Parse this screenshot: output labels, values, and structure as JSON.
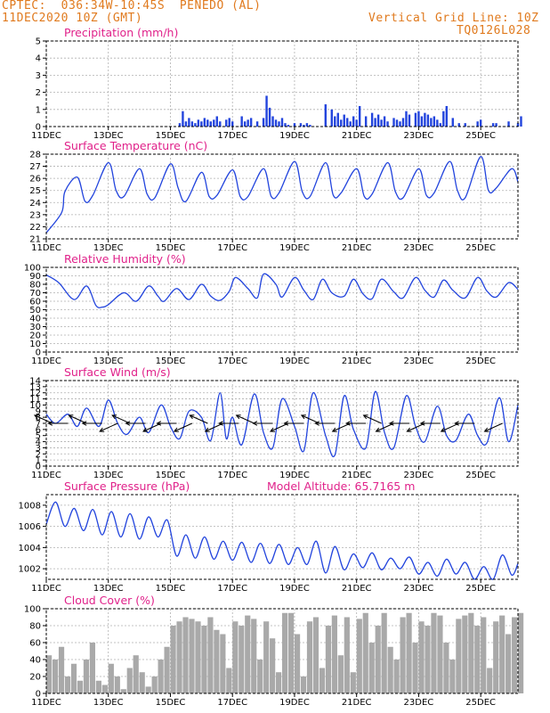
{
  "header": {
    "source": "CPTEC:",
    "coords": "036:34W-10:45S",
    "station": "PENEDO (AL)",
    "datetime": "11DEC2020 10Z (GMT)",
    "grid_note": "Vertical Grid Line: 10Z",
    "code": "TQ0126L028"
  },
  "colors": {
    "header": "#e07a1e",
    "title": "#e0218a",
    "line": "#2244dd",
    "cloud": "#a9a9a9"
  },
  "x_ticks": [
    "11DEC",
    "13DEC",
    "15DEC",
    "17DEC",
    "19DEC",
    "21DEC",
    "23DEC",
    "25DEC"
  ],
  "chart_data": [
    {
      "type": "bar",
      "title": "Precipitation (mm/h)",
      "ylim": [
        0,
        5
      ],
      "yticks": [
        "0",
        "1",
        "2",
        "3",
        "4",
        "5"
      ],
      "grid": true,
      "x_unit": "days since 11DEC2020 10Z",
      "series": [
        {
          "name": "Precipitation",
          "x": [
            4.3,
            4.4,
            4.5,
            4.6,
            4.7,
            4.8,
            4.9,
            5.0,
            5.1,
            5.2,
            5.3,
            5.4,
            5.5,
            5.6,
            5.8,
            5.9,
            6.0,
            6.3,
            6.4,
            6.5,
            6.6,
            6.8,
            7.0,
            7.1,
            7.2,
            7.3,
            7.4,
            7.5,
            7.6,
            7.7,
            7.8,
            8.0,
            8.2,
            8.3,
            8.4,
            8.5,
            9.0,
            9.2,
            9.3,
            9.4,
            9.5,
            9.6,
            9.7,
            9.8,
            9.9,
            10.0,
            10.1,
            10.3,
            10.5,
            10.6,
            10.7,
            10.8,
            10.9,
            11.0,
            11.2,
            11.3,
            11.4,
            11.5,
            11.6,
            11.7,
            11.9,
            12.0,
            12.1,
            12.2,
            12.3,
            12.4,
            12.5,
            12.6,
            12.7,
            12.8,
            12.9,
            13.1,
            13.3,
            13.5,
            13.9,
            14.0,
            14.4,
            14.5,
            14.9,
            15.2,
            15.3
          ],
          "values": [
            0.2,
            0.9,
            0.3,
            0.5,
            0.3,
            0.2,
            0.4,
            0.3,
            0.5,
            0.4,
            0.3,
            0.4,
            0.6,
            0.3,
            0.4,
            0.5,
            0.3,
            0.6,
            0.3,
            0.4,
            0.5,
            0.3,
            0.5,
            1.8,
            1.1,
            0.6,
            0.4,
            0.3,
            0.5,
            0.2,
            0.1,
            0.2,
            0.2,
            0.1,
            0.2,
            0.1,
            1.3,
            1.0,
            0.6,
            0.8,
            0.4,
            0.7,
            0.5,
            0.3,
            0.6,
            0.4,
            1.2,
            0.6,
            0.8,
            0.5,
            0.7,
            0.4,
            0.6,
            0.3,
            0.5,
            0.4,
            0.3,
            0.5,
            0.9,
            0.7,
            0.8,
            0.9,
            0.6,
            0.8,
            0.7,
            0.5,
            0.6,
            0.4,
            0.2,
            0.9,
            1.2,
            0.5,
            0.2,
            0.2,
            0.3,
            0.4,
            0.2,
            0.2,
            0.3,
            0.2,
            0.6
          ]
        }
      ]
    },
    {
      "type": "line",
      "title": "Surface Temperature (nC)",
      "ylim": [
        21,
        28
      ],
      "yticks": [
        "21",
        "22",
        "23",
        "24",
        "25",
        "26",
        "27",
        "28"
      ],
      "grid": true,
      "x_unit": "days since 11DEC2020 10Z",
      "series": [
        {
          "name": "Temperature",
          "x": [
            0,
            0.5,
            0.6,
            1.0,
            1.25,
            1.5,
            2.0,
            2.25,
            2.5,
            3.0,
            3.25,
            3.5,
            4.0,
            4.25,
            4.5,
            5.0,
            5.25,
            5.5,
            6.0,
            6.25,
            6.5,
            7.0,
            7.25,
            7.5,
            8.0,
            8.25,
            8.5,
            9.0,
            9.25,
            9.5,
            10.0,
            10.25,
            10.5,
            11.0,
            11.25,
            11.5,
            12.0,
            12.25,
            12.5,
            13.0,
            13.25,
            13.5,
            14.0,
            14.25,
            14.5,
            15.0,
            15.2
          ],
          "values": [
            21.5,
            23.2,
            24.9,
            26.1,
            24.1,
            24.6,
            27.3,
            25.0,
            24.5,
            26.8,
            24.7,
            24.4,
            27.2,
            25.2,
            24.1,
            26.5,
            24.5,
            24.6,
            26.7,
            24.5,
            24.5,
            26.8,
            24.5,
            24.8,
            27.4,
            24.9,
            24.5,
            27.3,
            24.6,
            24.8,
            26.8,
            24.5,
            24.7,
            27.3,
            24.9,
            24.4,
            26.8,
            24.6,
            24.8,
            27.4,
            25.0,
            24.4,
            27.8,
            25.0,
            25.2,
            26.8,
            25.7
          ]
        }
      ]
    },
    {
      "type": "line",
      "title": "Relative Humidity (%)",
      "ylim": [
        0,
        100
      ],
      "yticks": [
        "0",
        "10",
        "20",
        "30",
        "40",
        "50",
        "60",
        "70",
        "80",
        "90",
        "100"
      ],
      "grid": true,
      "x_unit": "days since 11DEC2020 10Z",
      "series": [
        {
          "name": "Relative Humidity",
          "x": [
            0,
            0.4,
            0.9,
            1.3,
            1.6,
            1.8,
            2.0,
            2.5,
            2.9,
            3.3,
            3.6,
            3.8,
            4.2,
            4.6,
            5.0,
            5.3,
            5.6,
            5.9,
            6.1,
            6.5,
            6.8,
            7.0,
            7.4,
            7.6,
            8.0,
            8.3,
            8.6,
            8.9,
            9.2,
            9.6,
            9.9,
            10.2,
            10.5,
            10.8,
            11.2,
            11.5,
            11.9,
            12.2,
            12.5,
            12.8,
            13.1,
            13.5,
            13.9,
            14.2,
            14.5,
            14.9,
            15.2
          ],
          "values": [
            91,
            82,
            62,
            78,
            55,
            53,
            56,
            70,
            60,
            78,
            66,
            60,
            75,
            62,
            80,
            66,
            61,
            72,
            88,
            75,
            64,
            92,
            80,
            65,
            88,
            73,
            62,
            86,
            70,
            66,
            86,
            69,
            63,
            86,
            71,
            64,
            88,
            73,
            65,
            85,
            73,
            64,
            88,
            72,
            65,
            82,
            74
          ]
        }
      ]
    },
    {
      "type": "line",
      "title": "Surface Wind (m/s)",
      "ylim": [
        0,
        14
      ],
      "yticks": [
        "0",
        "1",
        "2",
        "3",
        "4",
        "5",
        "6",
        "7",
        "8",
        "9",
        "10",
        "11",
        "12",
        "13",
        "14"
      ],
      "grid": true,
      "x_unit": "days since 11DEC2020 10Z",
      "series": [
        {
          "name": "Wind speed",
          "x": [
            0,
            0.3,
            0.7,
            1.0,
            1.3,
            1.7,
            2.0,
            2.3,
            2.6,
            3.0,
            3.3,
            3.7,
            4.0,
            4.3,
            4.6,
            5.0,
            5.3,
            5.6,
            5.8,
            6.0,
            6.3,
            6.7,
            7.0,
            7.3,
            7.6,
            8.0,
            8.3,
            8.6,
            9.0,
            9.3,
            9.6,
            9.9,
            10.3,
            10.6,
            10.9,
            11.2,
            11.6,
            11.9,
            12.2,
            12.6,
            12.9,
            13.2,
            13.6,
            13.9,
            14.2,
            14.6,
            14.9,
            15.2
          ],
          "values": [
            8.5,
            7.0,
            8.5,
            6.5,
            9.5,
            6.5,
            10.8,
            7.0,
            5.2,
            8.0,
            5.5,
            10.0,
            6.5,
            4.5,
            9.0,
            8.0,
            4.2,
            12.0,
            4.5,
            8.0,
            3.5,
            11.8,
            5.5,
            3.0,
            11.0,
            6.5,
            2.5,
            12.0,
            5.0,
            1.8,
            11.5,
            6.0,
            3.0,
            12.2,
            5.5,
            3.0,
            11.5,
            6.5,
            4.0,
            9.8,
            5.0,
            4.2,
            8.5,
            5.0,
            3.8,
            11.2,
            4.0,
            10.0
          ]
        }
      ],
      "vectors": [
        {
          "x": 0.2,
          "dir": "nw"
        },
        {
          "x": 0.7,
          "dir": "w"
        },
        {
          "x": 1.3,
          "dir": "nw"
        },
        {
          "x": 1.8,
          "dir": "w"
        },
        {
          "x": 2.3,
          "dir": "sw"
        },
        {
          "x": 2.7,
          "dir": "nw"
        },
        {
          "x": 3.2,
          "dir": "w"
        },
        {
          "x": 3.7,
          "dir": "sw"
        },
        {
          "x": 4.2,
          "dir": "w"
        },
        {
          "x": 4.7,
          "dir": "sw"
        },
        {
          "x": 5.2,
          "dir": "nw"
        },
        {
          "x": 5.7,
          "dir": "sw"
        },
        {
          "x": 6.2,
          "dir": "w"
        },
        {
          "x": 6.7,
          "dir": "nw"
        },
        {
          "x": 7.3,
          "dir": "w"
        },
        {
          "x": 7.8,
          "dir": "sw"
        },
        {
          "x": 8.3,
          "dir": "w"
        },
        {
          "x": 8.8,
          "dir": "nw"
        },
        {
          "x": 9.3,
          "dir": "w"
        },
        {
          "x": 9.8,
          "dir": "sw"
        },
        {
          "x": 10.3,
          "dir": "w"
        },
        {
          "x": 10.8,
          "dir": "nw"
        },
        {
          "x": 11.2,
          "dir": "sw"
        },
        {
          "x": 11.7,
          "dir": "w"
        },
        {
          "x": 12.2,
          "dir": "sw"
        },
        {
          "x": 12.7,
          "dir": "w"
        },
        {
          "x": 13.3,
          "dir": "sw"
        },
        {
          "x": 13.8,
          "dir": "w"
        },
        {
          "x": 14.7,
          "dir": "sw"
        }
      ]
    },
    {
      "type": "line",
      "title": "Surface Pressure (hPa)",
      "annotation": "Model Altitude: 65.7165 m",
      "ylim": [
        1001,
        1009
      ],
      "yticks": [
        "1002",
        "1004",
        "1006",
        "1008"
      ],
      "grid": true,
      "x_unit": "days since 11DEC2020 10Z",
      "series": [
        {
          "name": "Surface pressure",
          "x": [
            0,
            0.3,
            0.6,
            0.9,
            1.2,
            1.5,
            1.8,
            2.1,
            2.4,
            2.7,
            3.0,
            3.3,
            3.6,
            3.9,
            4.2,
            4.5,
            4.8,
            5.1,
            5.4,
            5.7,
            6.0,
            6.3,
            6.6,
            6.9,
            7.2,
            7.5,
            7.8,
            8.1,
            8.4,
            8.7,
            9.0,
            9.3,
            9.6,
            9.9,
            10.2,
            10.5,
            10.8,
            11.1,
            11.4,
            11.7,
            12.0,
            12.3,
            12.6,
            12.9,
            13.2,
            13.5,
            13.8,
            14.1,
            14.4,
            14.7,
            15.0,
            15.2
          ],
          "values": [
            1006.2,
            1008.3,
            1006.0,
            1007.7,
            1005.6,
            1007.6,
            1005.2,
            1007.4,
            1005.0,
            1007.2,
            1004.8,
            1006.9,
            1005.0,
            1006.6,
            1003.2,
            1005.2,
            1003.0,
            1005.0,
            1002.9,
            1004.6,
            1002.8,
            1004.5,
            1002.6,
            1004.4,
            1002.5,
            1004.3,
            1002.4,
            1004.0,
            1002.4,
            1004.6,
            1001.6,
            1004.1,
            1001.9,
            1003.4,
            1002.1,
            1003.5,
            1001.9,
            1003.0,
            1002.0,
            1003.1,
            1001.5,
            1002.6,
            1001.3,
            1002.9,
            1001.5,
            1002.6,
            1001.0,
            1002.2,
            1000.8,
            1003.3,
            1001.4,
            1002.5
          ]
        }
      ]
    },
    {
      "type": "area",
      "title": "Cloud Cover (%)",
      "ylim": [
        0,
        100
      ],
      "yticks": [
        "0",
        "20",
        "40",
        "60",
        "80",
        "100"
      ],
      "grid": true,
      "x_unit": "days since 11DEC2020 10Z",
      "series": [
        {
          "name": "Cloud cover",
          "x": [
            0,
            0.2,
            0.4,
            0.6,
            0.8,
            1.0,
            1.2,
            1.4,
            1.6,
            1.8,
            2.0,
            2.2,
            2.4,
            2.6,
            2.8,
            3.0,
            3.2,
            3.4,
            3.6,
            3.8,
            4.0,
            4.2,
            4.4,
            4.6,
            4.8,
            5.0,
            5.2,
            5.4,
            5.6,
            5.8,
            6.0,
            6.2,
            6.4,
            6.6,
            6.8,
            7.0,
            7.2,
            7.4,
            7.6,
            7.8,
            8.0,
            8.2,
            8.4,
            8.6,
            8.8,
            9.0,
            9.2,
            9.4,
            9.6,
            9.8,
            10.0,
            10.2,
            10.4,
            10.6,
            10.8,
            11.0,
            11.2,
            11.4,
            11.6,
            11.8,
            12.0,
            12.2,
            12.4,
            12.6,
            12.8,
            13.0,
            13.2,
            13.4,
            13.6,
            13.8,
            14.0,
            14.2,
            14.4,
            14.6,
            14.8,
            15.0,
            15.2
          ],
          "values": [
            45,
            40,
            55,
            20,
            35,
            15,
            40,
            60,
            15,
            10,
            35,
            20,
            5,
            30,
            45,
            25,
            8,
            20,
            40,
            55,
            80,
            85,
            90,
            88,
            85,
            80,
            90,
            75,
            70,
            30,
            85,
            80,
            92,
            88,
            40,
            85,
            65,
            25,
            95,
            95,
            70,
            20,
            85,
            90,
            30,
            80,
            92,
            45,
            90,
            25,
            88,
            95,
            60,
            80,
            95,
            55,
            40,
            90,
            95,
            60,
            85,
            80,
            95,
            92,
            60,
            40,
            88,
            92,
            95,
            80,
            90,
            30,
            85,
            92,
            70,
            90,
            95
          ]
        }
      ]
    }
  ]
}
